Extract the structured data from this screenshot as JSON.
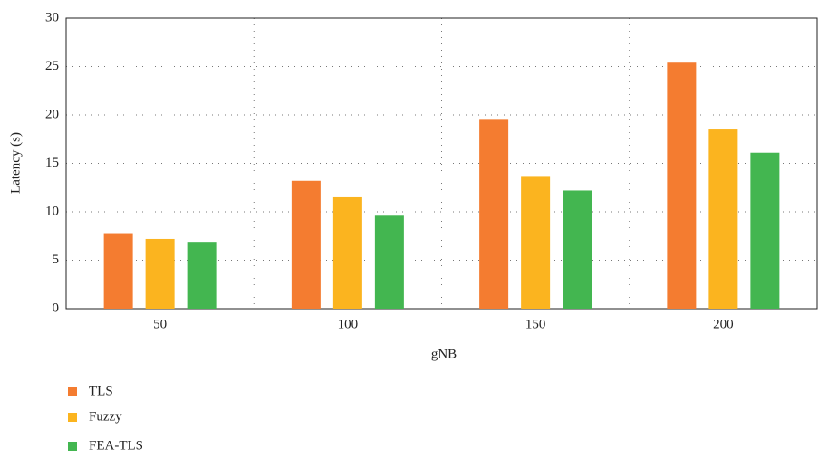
{
  "chart_data": {
    "type": "bar",
    "categories": [
      "50",
      "100",
      "150",
      "200"
    ],
    "series": [
      {
        "name": "TLS",
        "color": "#f47c30",
        "values": [
          7.8,
          13.2,
          19.5,
          25.4
        ]
      },
      {
        "name": "Fuzzy",
        "color": "#fbb41f",
        "values": [
          7.2,
          11.5,
          13.7,
          18.5
        ]
      },
      {
        "name": "FEA-TLS",
        "color": "#43b650",
        "values": [
          6.9,
          9.6,
          12.2,
          16.1
        ]
      }
    ],
    "x_label": "gNB",
    "y_label": "Latency (s)",
    "ylim": [
      0,
      30
    ],
    "yticks": [
      0,
      5,
      10,
      15,
      20,
      25,
      30
    ],
    "grid": true,
    "legend": "bottom-left"
  }
}
